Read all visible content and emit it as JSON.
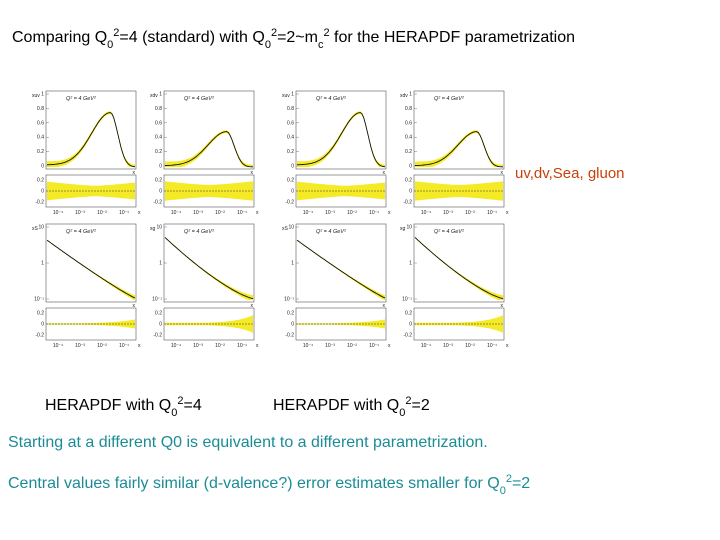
{
  "title": [
    "Comparing Q",
    "0",
    "2",
    "=4 (standard) with Q",
    "0",
    "2",
    "=2~m",
    "c",
    "2",
    " for the HERAPDF parametrization"
  ],
  "side_note": "uv,dv,Sea, gluon",
  "panel_scale": "Q² = 4 GeV²",
  "ticks_linear": [
    "1",
    "0.8",
    "0.6",
    "0.4",
    "0.2",
    "0"
  ],
  "ticks_log": [
    "10",
    "1",
    "10⁻¹"
  ],
  "ticks_ratio": [
    "0.2",
    "0",
    "-0.2"
  ],
  "ticks_x": [
    "10⁻⁴",
    "10⁻³",
    "10⁻²",
    "10⁻¹"
  ],
  "x_label": "x",
  "panel_labels": [
    "xuv",
    "xdv",
    "xS",
    "xg"
  ],
  "plots": [
    {
      "caption": [
        "HERAPDF with Q",
        "0",
        "2",
        "=4"
      ]
    },
    {
      "caption": [
        "HERAPDF with  Q",
        "0",
        "2",
        "=2"
      ]
    }
  ],
  "conclusions": [
    [
      "Starting at a different Q0 is equivalent to a different parametrization."
    ],
    [
      "Central values fairly similar (d-valence?) error estimates smaller for Q",
      "0",
      "2",
      "=2"
    ]
  ]
}
